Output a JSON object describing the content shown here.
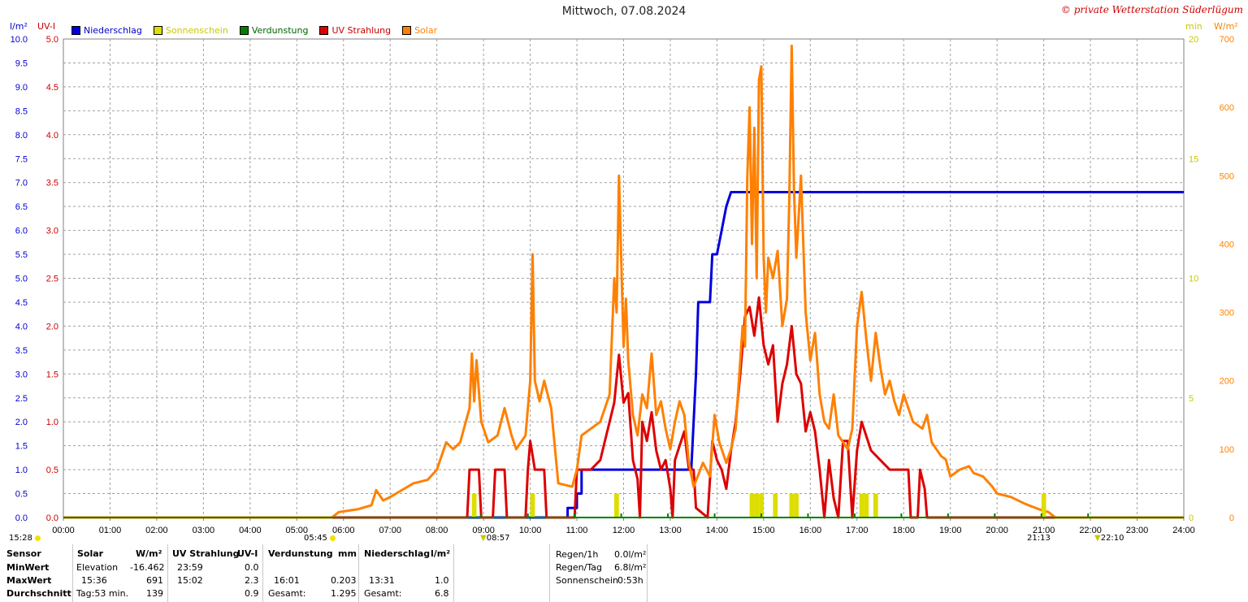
{
  "header": {
    "title": "Mittwoch, 07.08.2024",
    "copyright": "© private Wetterstation Süderlügum"
  },
  "legend": [
    {
      "label": "Niederschlag",
      "color": "#0000dd",
      "text_color": "#0000cc"
    },
    {
      "label": "Sonnenschein",
      "color": "#dddd00",
      "text_color": "#c8c800"
    },
    {
      "label": "Verdunstung",
      "color": "#008000",
      "text_color": "#006400"
    },
    {
      "label": "UV Strahlung",
      "color": "#dd0000",
      "text_color": "#cc0000"
    },
    {
      "label": "Solar",
      "color": "#ff8000",
      "text_color": "#ff8000"
    }
  ],
  "units": {
    "left1": "l/m²",
    "left2": "UV-I",
    "right1": "min",
    "right2": "W/m²"
  },
  "chart_data": {
    "type": "line",
    "x_ticks": [
      "00:00",
      "01:00",
      "02:00",
      "03:00",
      "04:00",
      "05:00",
      "06:00",
      "07:00",
      "08:00",
      "09:00",
      "10:00",
      "11:00",
      "12:00",
      "13:00",
      "14:00",
      "15:00",
      "16:00",
      "17:00",
      "18:00",
      "19:00",
      "20:00",
      "21:00",
      "22:00",
      "23:00",
      "24:00"
    ],
    "axes": {
      "rain": {
        "label": "l/m²",
        "ylim": [
          0,
          10
        ],
        "ticks": [
          "0.0",
          "0.5",
          "1.0",
          "1.5",
          "2.0",
          "2.5",
          "3.0",
          "3.5",
          "4.0",
          "4.5",
          "5.0",
          "5.5",
          "6.0",
          "6.5",
          "7.0",
          "7.5",
          "8.0",
          "8.5",
          "9.0",
          "9.5",
          "10.0"
        ]
      },
      "uv": {
        "label": "UV-I",
        "ylim": [
          0,
          5
        ],
        "ticks": [
          "0.0",
          "0.5",
          "1.0",
          "1.5",
          "2.0",
          "2.5",
          "3.0",
          "3.5",
          "4.0",
          "4.5",
          "5.0"
        ]
      },
      "sun": {
        "label": "min",
        "ylim": [
          0,
          20
        ],
        "ticks": [
          "0",
          "5",
          "10",
          "15",
          "20"
        ]
      },
      "solar": {
        "label": "W/m²",
        "ylim": [
          0,
          700
        ],
        "ticks": [
          "0",
          "100",
          "200",
          "300",
          "400",
          "500",
          "600",
          "700"
        ]
      }
    },
    "grid": true,
    "series": [
      {
        "name": "Niederschlag",
        "axis": "rain",
        "color": "#0000dd",
        "points": [
          [
            0,
            0
          ],
          [
            10.8,
            0
          ],
          [
            10.8,
            0.2
          ],
          [
            11.0,
            0.2
          ],
          [
            11.0,
            0.5
          ],
          [
            11.1,
            0.5
          ],
          [
            11.1,
            1.0
          ],
          [
            13.45,
            1.0
          ],
          [
            13.5,
            2.0
          ],
          [
            13.55,
            3.0
          ],
          [
            13.6,
            4.5
          ],
          [
            13.85,
            4.5
          ],
          [
            13.9,
            5.5
          ],
          [
            14.0,
            5.5
          ],
          [
            14.1,
            6.0
          ],
          [
            14.2,
            6.5
          ],
          [
            14.3,
            6.8
          ],
          [
            24,
            6.8
          ]
        ]
      },
      {
        "name": "UV Strahlung",
        "axis": "uv",
        "color": "#dd0000",
        "points": [
          [
            0,
            0
          ],
          [
            8.65,
            0
          ],
          [
            8.7,
            0.5
          ],
          [
            8.9,
            0.5
          ],
          [
            8.95,
            0
          ],
          [
            9.2,
            0
          ],
          [
            9.25,
            0.5
          ],
          [
            9.45,
            0.5
          ],
          [
            9.5,
            0
          ],
          [
            9.9,
            0
          ],
          [
            9.95,
            0.5
          ],
          [
            10.0,
            0.8
          ],
          [
            10.1,
            0.5
          ],
          [
            10.3,
            0.5
          ],
          [
            10.35,
            0
          ],
          [
            10.95,
            0
          ],
          [
            11.0,
            0.5
          ],
          [
            11.3,
            0.5
          ],
          [
            11.5,
            0.6
          ],
          [
            11.6,
            0.8
          ],
          [
            11.7,
            1.0
          ],
          [
            11.8,
            1.2
          ],
          [
            11.9,
            1.7
          ],
          [
            12.0,
            1.2
          ],
          [
            12.1,
            1.3
          ],
          [
            12.2,
            0.6
          ],
          [
            12.3,
            0.4
          ],
          [
            12.35,
            0
          ],
          [
            12.4,
            1.0
          ],
          [
            12.5,
            0.8
          ],
          [
            12.6,
            1.1
          ],
          [
            12.7,
            0.7
          ],
          [
            12.8,
            0.5
          ],
          [
            12.9,
            0.6
          ],
          [
            13.0,
            0.3
          ],
          [
            13.05,
            0
          ],
          [
            13.1,
            0.6
          ],
          [
            13.3,
            0.9
          ],
          [
            13.4,
            0.5
          ],
          [
            13.5,
            0.5
          ],
          [
            13.55,
            0.1
          ],
          [
            13.8,
            0
          ],
          [
            13.9,
            0.8
          ],
          [
            14.0,
            0.6
          ],
          [
            14.1,
            0.5
          ],
          [
            14.2,
            0.3
          ],
          [
            14.3,
            0.7
          ],
          [
            14.4,
            1.0
          ],
          [
            14.5,
            1.5
          ],
          [
            14.6,
            2.1
          ],
          [
            14.7,
            2.2
          ],
          [
            14.8,
            1.9
          ],
          [
            14.9,
            2.3
          ],
          [
            15.0,
            1.8
          ],
          [
            15.1,
            1.6
          ],
          [
            15.2,
            1.8
          ],
          [
            15.3,
            1.0
          ],
          [
            15.4,
            1.4
          ],
          [
            15.5,
            1.6
          ],
          [
            15.6,
            2.0
          ],
          [
            15.7,
            1.5
          ],
          [
            15.8,
            1.4
          ],
          [
            15.9,
            0.9
          ],
          [
            16.0,
            1.1
          ],
          [
            16.1,
            0.9
          ],
          [
            16.2,
            0.5
          ],
          [
            16.3,
            0
          ],
          [
            16.4,
            0.6
          ],
          [
            16.5,
            0.2
          ],
          [
            16.6,
            0
          ],
          [
            16.7,
            0.8
          ],
          [
            16.8,
            0.8
          ],
          [
            16.9,
            0
          ],
          [
            17.0,
            0.7
          ],
          [
            17.1,
            1.0
          ],
          [
            17.3,
            0.7
          ],
          [
            17.5,
            0.6
          ],
          [
            17.7,
            0.5
          ],
          [
            17.9,
            0.5
          ],
          [
            18.1,
            0.5
          ],
          [
            18.15,
            0
          ],
          [
            18.3,
            0
          ],
          [
            18.35,
            0.5
          ],
          [
            18.45,
            0.3
          ],
          [
            18.5,
            0
          ],
          [
            24,
            0
          ]
        ]
      },
      {
        "name": "Solar",
        "axis": "solar",
        "color": "#ff8000",
        "points": [
          [
            0,
            0
          ],
          [
            5.75,
            0
          ],
          [
            5.9,
            8
          ],
          [
            6.3,
            12
          ],
          [
            6.6,
            18
          ],
          [
            6.7,
            40
          ],
          [
            6.85,
            25
          ],
          [
            7.0,
            30
          ],
          [
            7.2,
            38
          ],
          [
            7.5,
            50
          ],
          [
            7.8,
            55
          ],
          [
            8.0,
            70
          ],
          [
            8.2,
            110
          ],
          [
            8.35,
            100
          ],
          [
            8.5,
            110
          ],
          [
            8.7,
            160
          ],
          [
            8.75,
            240
          ],
          [
            8.8,
            170
          ],
          [
            8.85,
            230
          ],
          [
            8.95,
            140
          ],
          [
            9.1,
            110
          ],
          [
            9.3,
            120
          ],
          [
            9.45,
            160
          ],
          [
            9.6,
            120
          ],
          [
            9.7,
            100
          ],
          [
            9.9,
            120
          ],
          [
            10.0,
            200
          ],
          [
            10.05,
            385
          ],
          [
            10.1,
            200
          ],
          [
            10.2,
            170
          ],
          [
            10.3,
            200
          ],
          [
            10.45,
            160
          ],
          [
            10.6,
            50
          ],
          [
            10.9,
            45
          ],
          [
            11.0,
            70
          ],
          [
            11.1,
            120
          ],
          [
            11.3,
            130
          ],
          [
            11.5,
            140
          ],
          [
            11.7,
            180
          ],
          [
            11.8,
            350
          ],
          [
            11.85,
            300
          ],
          [
            11.9,
            500
          ],
          [
            12.0,
            250
          ],
          [
            12.05,
            320
          ],
          [
            12.1,
            230
          ],
          [
            12.2,
            150
          ],
          [
            12.3,
            120
          ],
          [
            12.4,
            180
          ],
          [
            12.5,
            160
          ],
          [
            12.6,
            240
          ],
          [
            12.7,
            150
          ],
          [
            12.8,
            170
          ],
          [
            12.9,
            130
          ],
          [
            13.0,
            100
          ],
          [
            13.1,
            140
          ],
          [
            13.2,
            170
          ],
          [
            13.3,
            150
          ],
          [
            13.4,
            80
          ],
          [
            13.5,
            45
          ],
          [
            13.7,
            80
          ],
          [
            13.85,
            60
          ],
          [
            13.95,
            150
          ],
          [
            14.05,
            110
          ],
          [
            14.2,
            80
          ],
          [
            14.3,
            100
          ],
          [
            14.4,
            130
          ],
          [
            14.55,
            280
          ],
          [
            14.6,
            250
          ],
          [
            14.65,
            500
          ],
          [
            14.7,
            600
          ],
          [
            14.75,
            400
          ],
          [
            14.8,
            570
          ],
          [
            14.85,
            350
          ],
          [
            14.9,
            640
          ],
          [
            14.95,
            660
          ],
          [
            15.0,
            380
          ],
          [
            15.05,
            300
          ],
          [
            15.1,
            380
          ],
          [
            15.2,
            350
          ],
          [
            15.3,
            390
          ],
          [
            15.4,
            280
          ],
          [
            15.5,
            320
          ],
          [
            15.55,
            470
          ],
          [
            15.6,
            690
          ],
          [
            15.65,
            480
          ],
          [
            15.7,
            380
          ],
          [
            15.8,
            500
          ],
          [
            15.85,
            400
          ],
          [
            15.9,
            300
          ],
          [
            16.0,
            230
          ],
          [
            16.1,
            270
          ],
          [
            16.2,
            180
          ],
          [
            16.3,
            140
          ],
          [
            16.4,
            130
          ],
          [
            16.5,
            180
          ],
          [
            16.6,
            120
          ],
          [
            16.7,
            110
          ],
          [
            16.8,
            100
          ],
          [
            16.9,
            130
          ],
          [
            17.0,
            280
          ],
          [
            17.1,
            330
          ],
          [
            17.2,
            260
          ],
          [
            17.3,
            200
          ],
          [
            17.4,
            270
          ],
          [
            17.5,
            220
          ],
          [
            17.6,
            180
          ],
          [
            17.7,
            200
          ],
          [
            17.8,
            170
          ],
          [
            17.9,
            150
          ],
          [
            18.0,
            180
          ],
          [
            18.1,
            160
          ],
          [
            18.2,
            140
          ],
          [
            18.4,
            130
          ],
          [
            18.5,
            150
          ],
          [
            18.6,
            110
          ],
          [
            18.8,
            90
          ],
          [
            18.9,
            85
          ],
          [
            19.0,
            60
          ],
          [
            19.2,
            70
          ],
          [
            19.4,
            75
          ],
          [
            19.5,
            65
          ],
          [
            19.7,
            60
          ],
          [
            19.9,
            45
          ],
          [
            20.0,
            35
          ],
          [
            20.3,
            30
          ],
          [
            20.6,
            20
          ],
          [
            20.9,
            12
          ],
          [
            21.1,
            8
          ],
          [
            21.25,
            0
          ],
          [
            24,
            0
          ]
        ]
      },
      {
        "name": "Sonnenschein",
        "axis": "sun",
        "color": "#dddd00",
        "type": "bars",
        "bars": [
          [
            8.8,
            1
          ],
          [
            10.05,
            1
          ],
          [
            11.85,
            1
          ],
          [
            14.75,
            1
          ],
          [
            14.85,
            1
          ],
          [
            14.95,
            1
          ],
          [
            15.25,
            1
          ],
          [
            15.6,
            1
          ],
          [
            15.7,
            1
          ],
          [
            17.1,
            1
          ],
          [
            17.2,
            1
          ],
          [
            17.4,
            1
          ],
          [
            21.0,
            1
          ]
        ]
      },
      {
        "name": "Verdunstung",
        "axis": "sun",
        "color": "#008000",
        "type": "ticks",
        "ticks": [
          8.95,
          9.95,
          10.95,
          11.95,
          12.95,
          13.95,
          14.95,
          15.95,
          16.95,
          17.95,
          18.95,
          19.95,
          20.95,
          21.95
        ]
      }
    ]
  },
  "sun_marks": {
    "moonrise": "15:28",
    "sunrise": "05:45",
    "moonset_marker": "08:57",
    "sunset": "21:13",
    "moon_marker": "22:10"
  },
  "table": {
    "sensor_label": "Sensor",
    "min_label": "MinWert",
    "max_label": "MaxWert",
    "avg_label": "Durchschnitt",
    "solar": {
      "header": "Solar",
      "unit": "W/m²",
      "min_time": "Elevation",
      "min_val": "-16.462",
      "max_time": "15:36",
      "max_val": "691",
      "avg_time": "Tag:53 min.",
      "avg_val": "139"
    },
    "uv": {
      "header": "UV Strahlung",
      "unit": "UV-I",
      "min_time": "23:59",
      "min_val": "0.0",
      "max_time": "15:02",
      "max_val": "2.3",
      "avg_val": "0.9"
    },
    "evap": {
      "header": "Verdunstung",
      "unit": "mm",
      "max_time": "16:01",
      "max_val": "0.203",
      "avg_time": "Gesamt:",
      "avg_val": "1.295"
    },
    "rain": {
      "header": "Niederschlag",
      "unit": "l/m²",
      "max_time": "13:31",
      "max_val": "1.0",
      "avg_time": "Gesamt:",
      "avg_val": "6.8"
    },
    "summary": {
      "rain_h_label": "Regen/1h",
      "rain_h_val": "0.0l/m²",
      "rain_day_label": "Regen/Tag",
      "rain_day_val": "6.8l/m²",
      "sun_label": "Sonnenschein",
      "sun_val": "0:53h"
    }
  }
}
